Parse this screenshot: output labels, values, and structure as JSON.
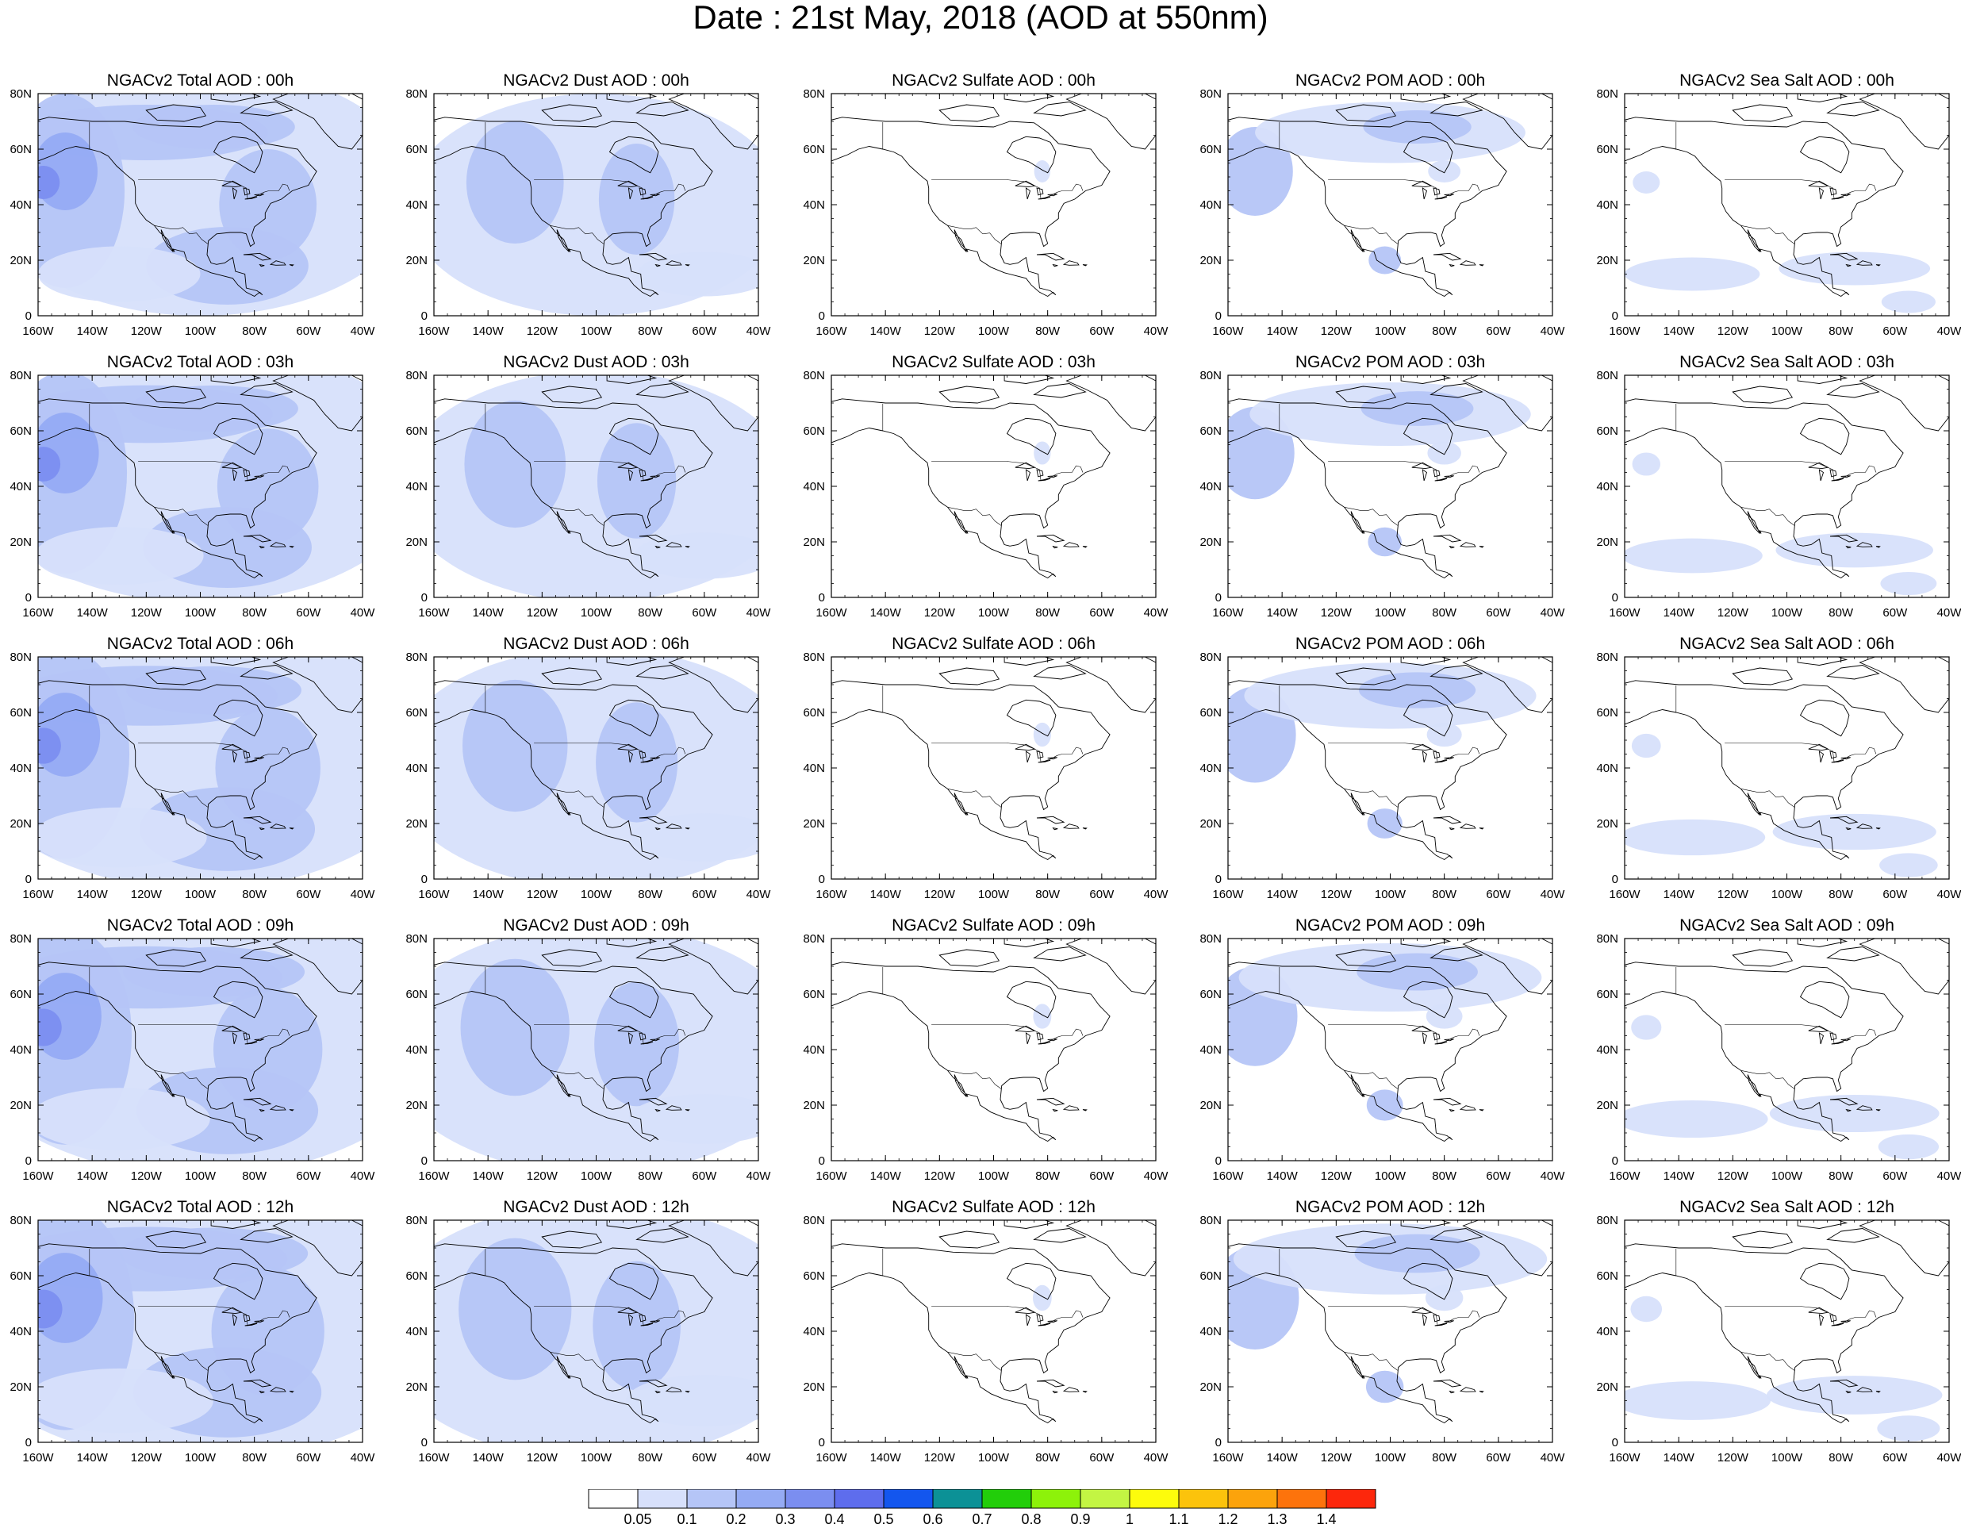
{
  "title": "Date : 21st May, 2018 (AOD at 550nm)",
  "x_ticks": [
    "160W",
    "140W",
    "120W",
    "100W",
    "80W",
    "60W",
    "40W"
  ],
  "y_ticks": [
    "80N",
    "60N",
    "40N",
    "20N",
    "0"
  ],
  "columns": [
    {
      "key": "total",
      "titles": [
        "NGACv2 Total AOD : 00h",
        "NGACv2 Total AOD : 03h",
        "NGACv2 Total AOD : 06h",
        "NGACv2 Total AOD : 09h",
        "NGACv2 Total AOD  : 12h"
      ]
    },
    {
      "key": "dust",
      "titles": [
        "NGACv2 Dust AOD : 00h",
        "NGACv2 Dust AOD : 03h",
        "NGACv2 Dust AOD : 06h",
        "NGACv2 Dust AOD : 09h",
        "NGACv2 Dust AOD : 12h"
      ]
    },
    {
      "key": "sulfate",
      "titles": [
        "NGACv2 Sulfate AOD : 00h",
        "NGACv2 Sulfate AOD : 03h",
        "NGACv2 Sulfate AOD : 06h",
        "NGACv2 Sulfate AOD : 09h",
        "NGACv2 Sulfate AOD : 12h"
      ]
    },
    {
      "key": "pom",
      "titles": [
        "NGACv2 POM AOD : 00h",
        "NGACv2 POM AOD : 03h",
        "NGACv2 POM AOD : 06h",
        "NGACv2 POM AOD : 09h",
        "NGACv2 POM  AOD : 12h"
      ]
    },
    {
      "key": "seasalt",
      "titles": [
        "NGACv2 Sea Salt AOD : 00h",
        "NGACv2 Sea Salt AOD : 03h",
        "NGACv2 Sea Salt AOD : 06h",
        "NGACv2 Sea Salt  AOD : 09h",
        "NGACv2 Sea Salt  AOD : 12h"
      ]
    }
  ],
  "colorbar": {
    "labels": [
      "0.05",
      "0.1",
      "0.2",
      "0.3",
      "0.4",
      "0.5",
      "0.6",
      "0.7",
      "0.8",
      "0.9",
      "1",
      "1.1",
      "1.2",
      "1.3",
      "1.4"
    ],
    "colors": [
      "#ffffff",
      "#d7e0fb",
      "#b5c5f7",
      "#95abf4",
      "#7b8ef0",
      "#5e6ded",
      "#1356ee",
      "#0c9196",
      "#22ce0a",
      "#8df20a",
      "#c3f543",
      "#fdfc0c",
      "#fcc30c",
      "#fca30c",
      "#fd730c",
      "#fd270c"
    ]
  }
}
